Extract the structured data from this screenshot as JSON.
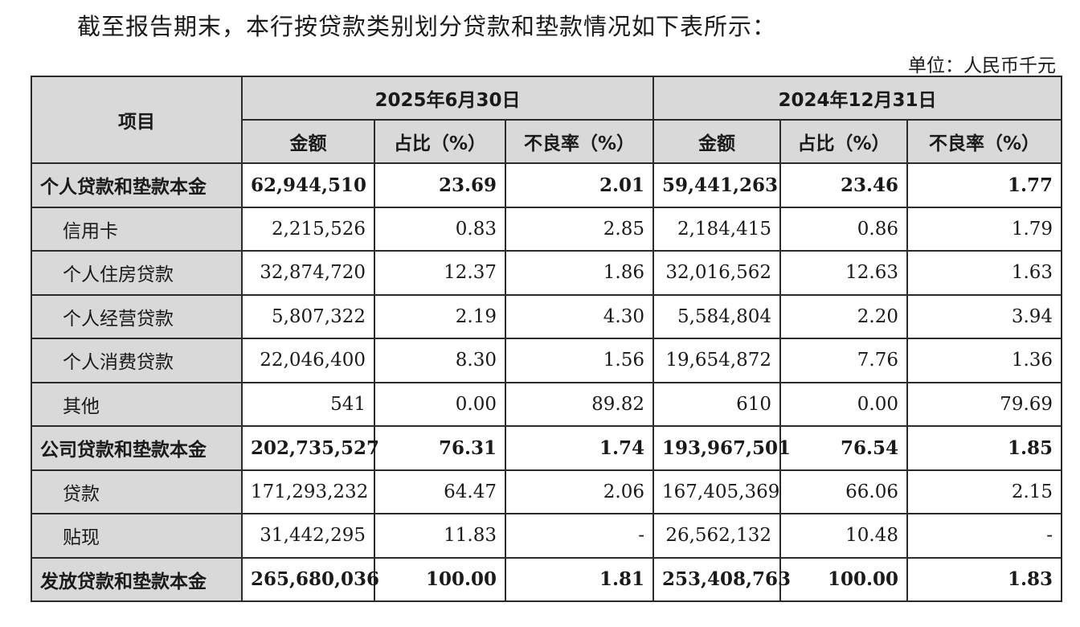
{
  "intro_text": "截至报告期末，本行按贷款类别划分贷款和垫款情况如下表所示：",
  "unit_text": "单位：人民币千元",
  "table": {
    "item_header": "项目",
    "period_headers": [
      "2025年6月30日",
      "2024年12月31日"
    ],
    "sub_headers": [
      "金额",
      "占比（%）",
      "不良率（%）",
      "金额",
      "占比（%）",
      "不良率（%）"
    ],
    "rows": [
      {
        "label": "个人贷款和垫款本金",
        "bold": true,
        "values": [
          "62,944,510",
          "23.69",
          "2.01",
          "59,441,263",
          "23.46",
          "1.77"
        ]
      },
      {
        "label": "信用卡",
        "bold": false,
        "values": [
          "2,215,526",
          "0.83",
          "2.85",
          "2,184,415",
          "0.86",
          "1.79"
        ]
      },
      {
        "label": "个人住房贷款",
        "bold": false,
        "values": [
          "32,874,720",
          "12.37",
          "1.86",
          "32,016,562",
          "12.63",
          "1.63"
        ]
      },
      {
        "label": "个人经营贷款",
        "bold": false,
        "values": [
          "5,807,322",
          "2.19",
          "4.30",
          "5,584,804",
          "2.20",
          "3.94"
        ]
      },
      {
        "label": "个人消费贷款",
        "bold": false,
        "values": [
          "22,046,400",
          "8.30",
          "1.56",
          "19,654,872",
          "7.76",
          "1.36"
        ]
      },
      {
        "label": "其他",
        "bold": false,
        "values": [
          "541",
          "0.00",
          "89.82",
          "610",
          "0.00",
          "79.69"
        ]
      },
      {
        "label": "公司贷款和垫款本金",
        "bold": true,
        "values": [
          "202,735,527",
          "76.31",
          "1.74",
          "193,967,501",
          "76.54",
          "1.85"
        ]
      },
      {
        "label": "贷款",
        "bold": false,
        "values": [
          "171,293,232",
          "64.47",
          "2.06",
          "167,405,369",
          "66.06",
          "2.15"
        ]
      },
      {
        "label": "贴现",
        "bold": false,
        "values": [
          "31,442,295",
          "11.83",
          "-",
          "26,562,132",
          "10.48",
          "-"
        ]
      },
      {
        "label": "发放贷款和垫款本金",
        "bold": true,
        "values": [
          "265,680,036",
          "100.00",
          "1.81",
          "253,408,763",
          "100.00",
          "1.83"
        ]
      }
    ]
  }
}
